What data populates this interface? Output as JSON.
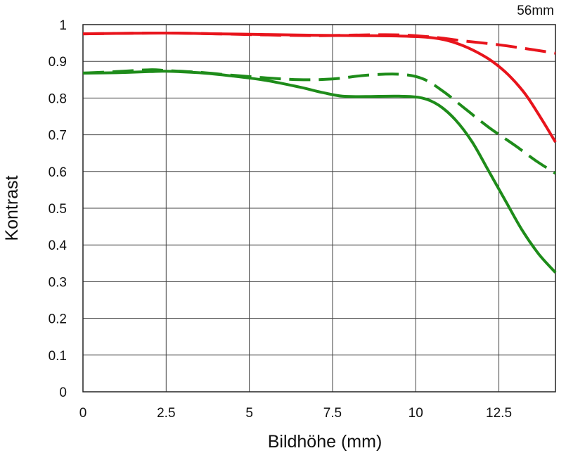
{
  "chart_data": {
    "type": "line",
    "title": "",
    "corner_label": "56mm",
    "xlabel": "Bildhöhe (mm)",
    "ylabel": "Kontrast",
    "xlim": [
      0,
      14.2
    ],
    "ylim": [
      0,
      1
    ],
    "xticks": [
      0,
      2.5,
      5,
      7.5,
      10,
      12.5
    ],
    "xtick_labels": [
      "0",
      "2.5",
      "5",
      "7.5",
      "10",
      "12.5"
    ],
    "yticks": [
      0,
      0.1,
      0.2,
      0.3,
      0.4,
      0.5,
      0.6,
      0.7,
      0.8,
      0.9,
      1
    ],
    "ytick_labels": [
      "0",
      "0.1",
      "0.2",
      "0.3",
      "0.4",
      "0.5",
      "0.6",
      "0.7",
      "0.8",
      "0.9",
      "1"
    ],
    "grid": true,
    "series": [
      {
        "color": "#e8141c",
        "dash": "solid",
        "x": [
          0,
          1,
          2.5,
          4,
          5.5,
          7,
          8.5,
          9.5,
          10.3,
          10.8,
          11.3,
          11.8,
          12.3,
          12.8,
          13.3,
          13.8,
          14.2
        ],
        "y": [
          0.975,
          0.976,
          0.977,
          0.975,
          0.973,
          0.971,
          0.97,
          0.969,
          0.966,
          0.96,
          0.947,
          0.927,
          0.9,
          0.862,
          0.81,
          0.74,
          0.68
        ]
      },
      {
        "color": "#e8141c",
        "dash": "dashed",
        "x": [
          0,
          1,
          2.5,
          4,
          5.5,
          7,
          8.5,
          9.5,
          10.5,
          11.5,
          12.5,
          13.5,
          14.2
        ],
        "y": [
          0.975,
          0.976,
          0.977,
          0.975,
          0.972,
          0.97,
          0.972,
          0.972,
          0.966,
          0.955,
          0.945,
          0.932,
          0.922
        ]
      },
      {
        "color": "#1e8c1a",
        "dash": "solid",
        "x": [
          0,
          1,
          2,
          2.5,
          3.5,
          4.5,
          5.5,
          6.5,
          7.2,
          7.8,
          8.5,
          9.5,
          10.2,
          10.7,
          11.2,
          11.7,
          12.2,
          12.7,
          13.2,
          13.7,
          14.2
        ],
        "y": [
          0.868,
          0.869,
          0.872,
          0.873,
          0.869,
          0.86,
          0.848,
          0.83,
          0.815,
          0.805,
          0.804,
          0.805,
          0.8,
          0.78,
          0.74,
          0.68,
          0.6,
          0.52,
          0.44,
          0.375,
          0.325
        ]
      },
      {
        "color": "#1e8c1a",
        "dash": "dashed",
        "x": [
          0,
          1,
          2,
          2.5,
          3.5,
          4.5,
          5.5,
          6.5,
          7.5,
          8.5,
          9.5,
          10.2,
          10.8,
          11.5,
          12.2,
          13,
          13.6,
          14.2
        ],
        "y": [
          0.868,
          0.872,
          0.877,
          0.875,
          0.87,
          0.862,
          0.855,
          0.85,
          0.852,
          0.862,
          0.865,
          0.853,
          0.82,
          0.77,
          0.72,
          0.67,
          0.63,
          0.595
        ]
      }
    ]
  }
}
